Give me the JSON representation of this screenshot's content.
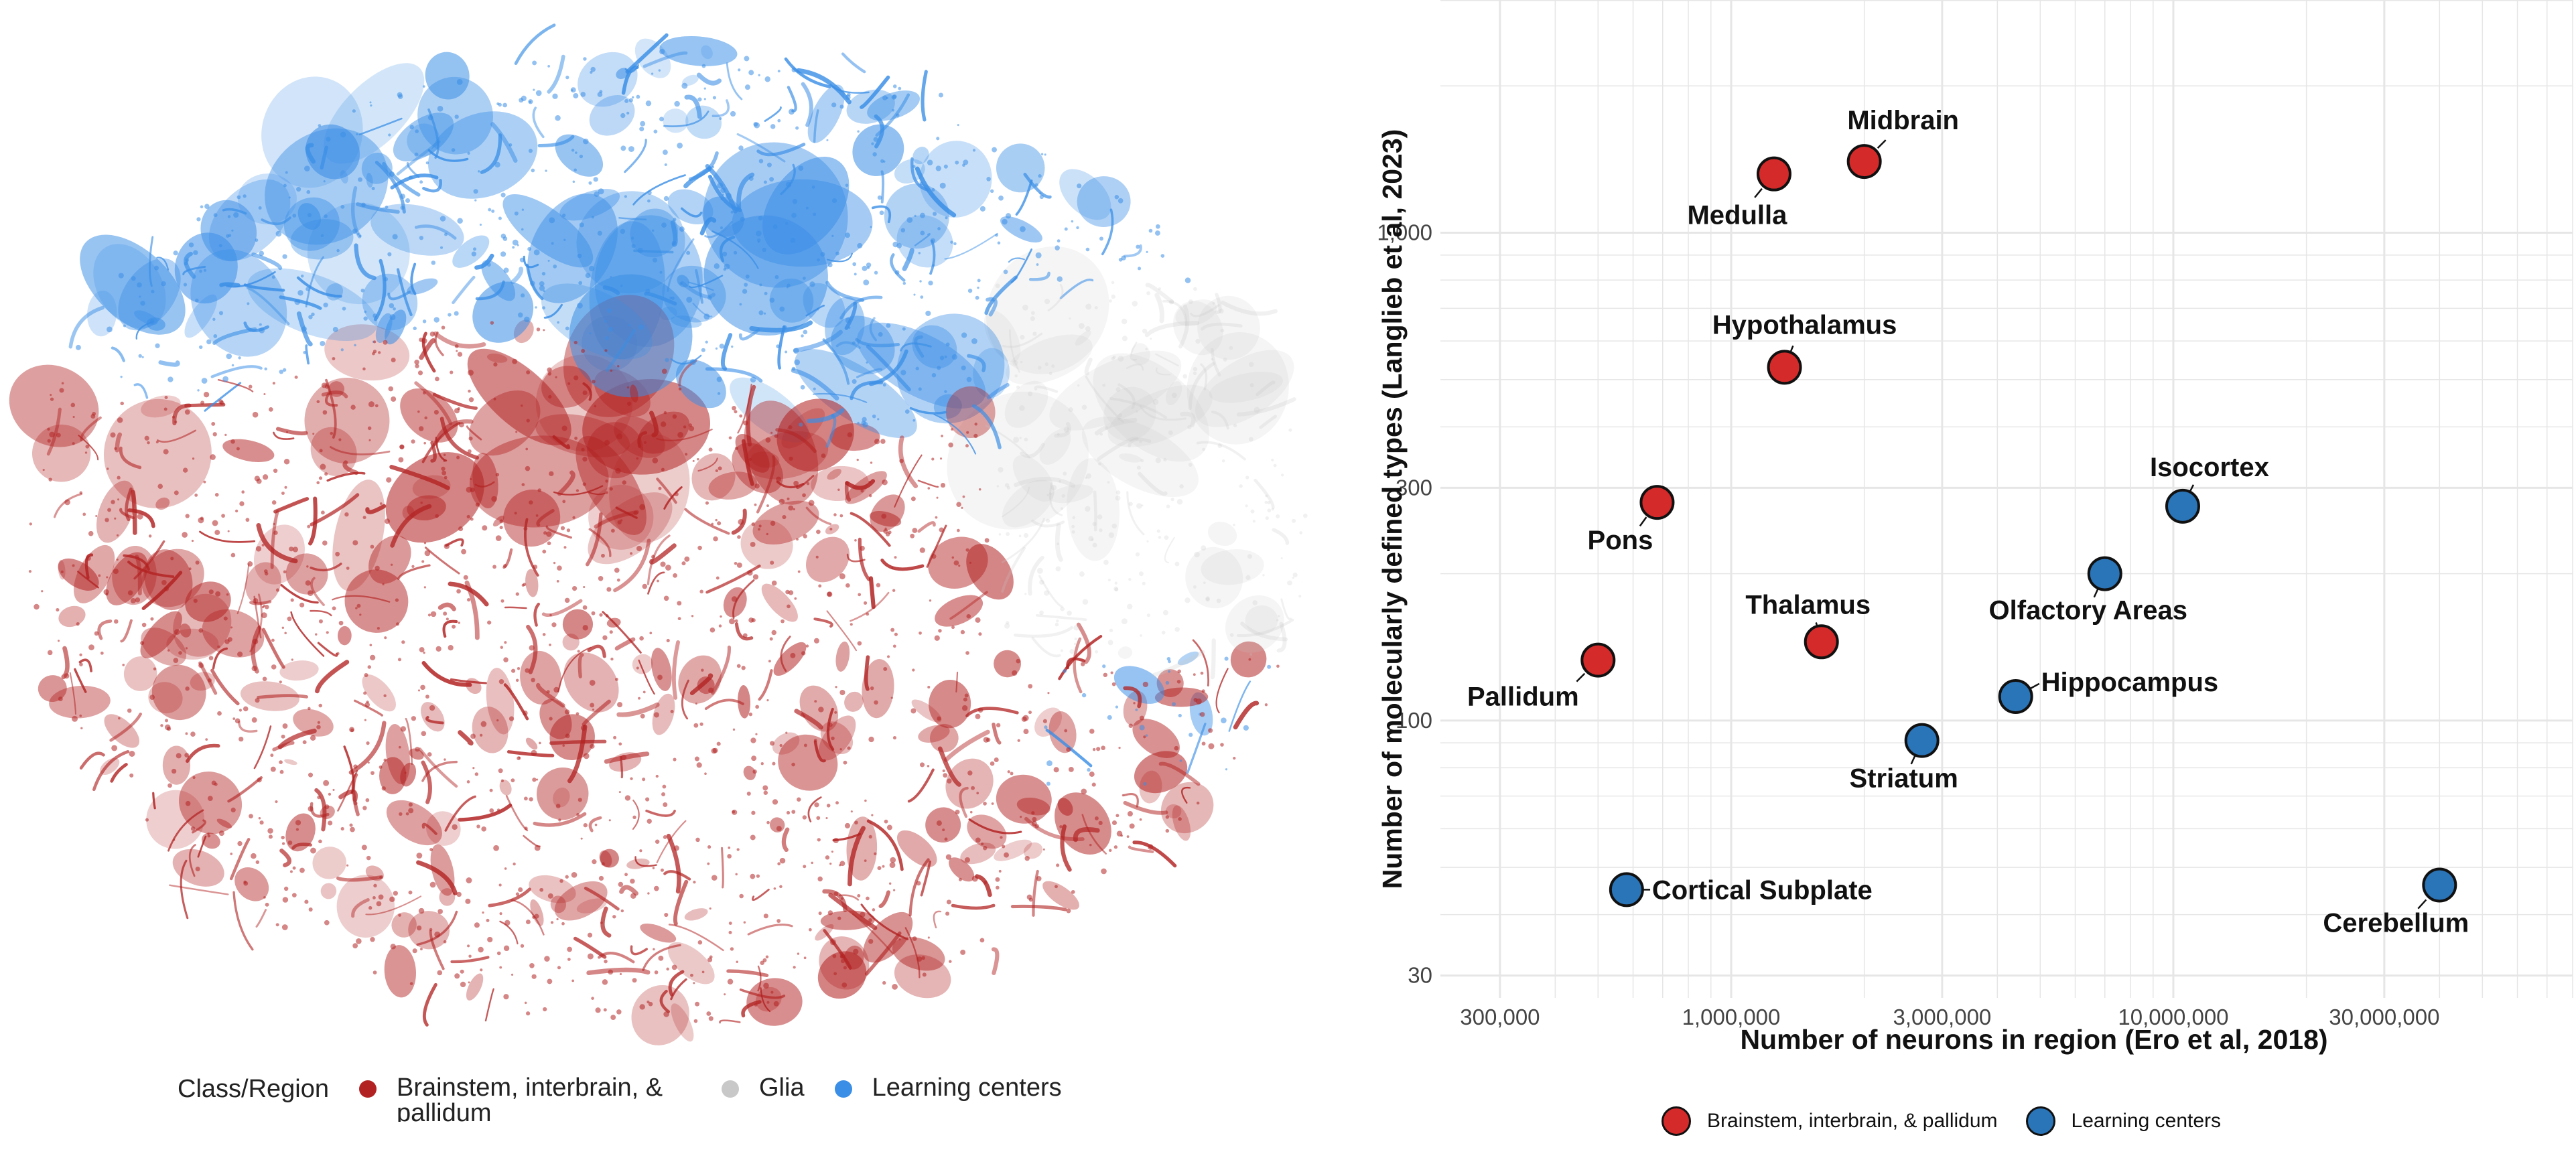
{
  "colors": {
    "brainstem": "#b22222",
    "glia": "#c8c8c8",
    "learning": "#3a8ee6",
    "scatter_red": "#d42a2a",
    "scatter_blue": "#2a74b8",
    "grid": "#e6e6e6"
  },
  "left_panel": {
    "legend_title": "Class/Region",
    "legend_items": [
      {
        "label": "Brainstem, interbrain, & pallidum",
        "color": "#b22222"
      },
      {
        "label": "Glia",
        "color": "#c8c8c8"
      },
      {
        "label": "Learning centers",
        "color": "#3a8ee6"
      }
    ]
  },
  "chart_data": {
    "type": "scatter",
    "xlabel": "Number of neurons in region (Ero et al, 2018)",
    "ylabel": "Number of molecularly defined types (Langlieb et al, 2023)",
    "x_scale": "log",
    "y_scale": "log",
    "xlim": [
      220000,
      80000000
    ],
    "ylim": [
      27,
      3000
    ],
    "x_ticks": [
      {
        "value": 300000,
        "label": "300,000"
      },
      {
        "value": 1000000,
        "label": "1,000,000"
      },
      {
        "value": 3000000,
        "label": "3,000,000"
      },
      {
        "value": 10000000,
        "label": "10,000,000"
      },
      {
        "value": 30000000,
        "label": "30,000,000"
      }
    ],
    "y_ticks": [
      {
        "value": 30,
        "label": "30"
      },
      {
        "value": 100,
        "label": "100"
      },
      {
        "value": 300,
        "label": "300"
      },
      {
        "value": 1000,
        "label": "1,000"
      }
    ],
    "grid": true,
    "legend_position": "bottom",
    "series": [
      {
        "name": "Brainstem, interbrain, & pallidum",
        "color": "#d42a2a",
        "points": [
          {
            "label": "Midbrain",
            "x": 2000000,
            "y": 1400
          },
          {
            "label": "Medulla",
            "x": 1250000,
            "y": 1320
          },
          {
            "label": "Hypothalamus",
            "x": 1320000,
            "y": 530
          },
          {
            "label": "Pons",
            "x": 680000,
            "y": 280
          },
          {
            "label": "Thalamus",
            "x": 1600000,
            "y": 145
          },
          {
            "label": "Pallidum",
            "x": 500000,
            "y": 133
          }
        ]
      },
      {
        "name": "Learning centers",
        "color": "#2a74b8",
        "points": [
          {
            "label": "Isocortex",
            "x": 10500000,
            "y": 275
          },
          {
            "label": "Olfactory Areas",
            "x": 7000000,
            "y": 200
          },
          {
            "label": "Hippocampus",
            "x": 4400000,
            "y": 112
          },
          {
            "label": "Striatum",
            "x": 2700000,
            "y": 91
          },
          {
            "label": "Cortical Subplate",
            "x": 580000,
            "y": 45
          },
          {
            "label": "Cerebellum",
            "x": 40000000,
            "y": 46
          }
        ]
      }
    ]
  }
}
